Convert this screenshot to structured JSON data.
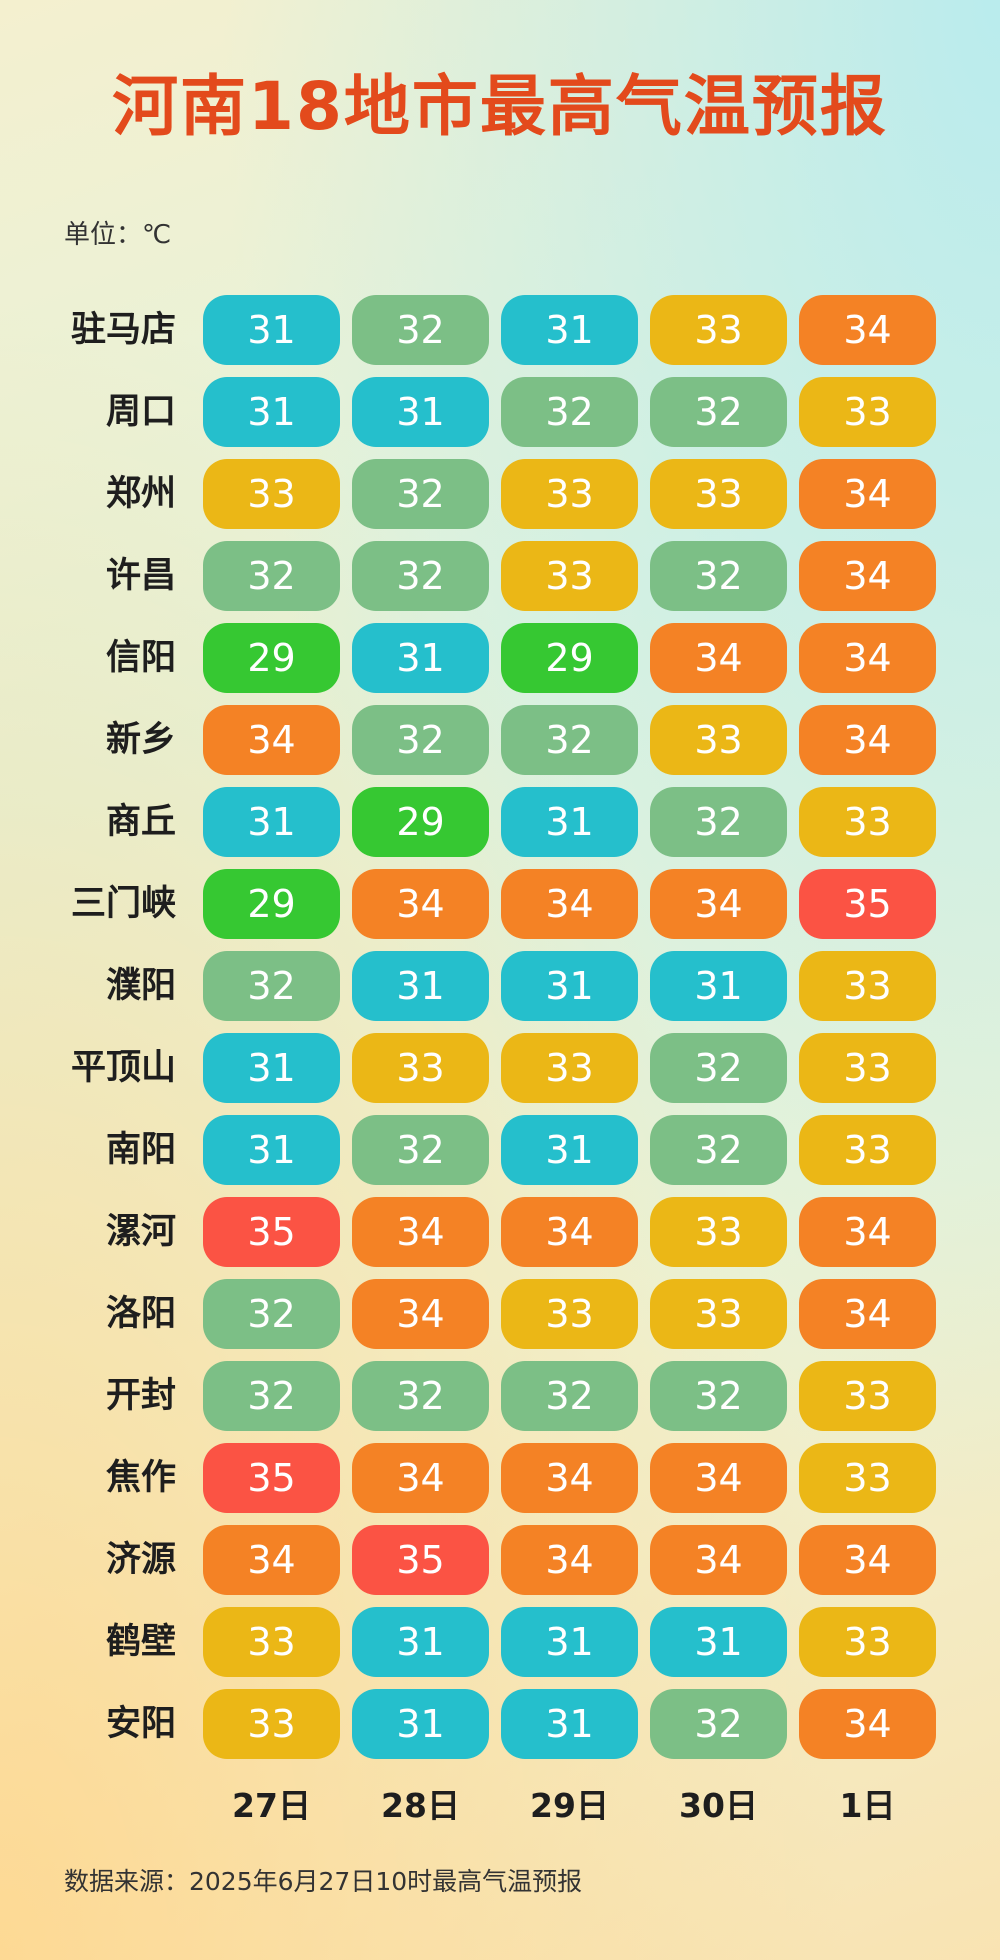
{
  "title": "河南18地市最高气温预报",
  "unit": "单位：℃",
  "source": "数据来源：2025年6月27日10时最高气温预报",
  "colors": {
    "29": "#36c832",
    "31": "#25bfcc",
    "32": "#7cbf86",
    "33": "#ebb716",
    "34": "#f48225",
    "35": "#fb5344"
  },
  "chart_data": {
    "type": "heatmap",
    "title": "河南18地市最高气温预报",
    "unit": "℃",
    "x": [
      "27日",
      "28日",
      "29日",
      "30日",
      "1日"
    ],
    "y": [
      "驻马店",
      "周口",
      "郑州",
      "许昌",
      "信阳",
      "新乡",
      "商丘",
      "三门峡",
      "濮阳",
      "平顶山",
      "南阳",
      "漯河",
      "洛阳",
      "开封",
      "焦作",
      "济源",
      "鹤壁",
      "安阳"
    ],
    "values": [
      [
        31,
        32,
        31,
        33,
        34
      ],
      [
        31,
        31,
        32,
        32,
        33
      ],
      [
        33,
        32,
        33,
        33,
        34
      ],
      [
        32,
        32,
        33,
        32,
        34
      ],
      [
        29,
        31,
        29,
        34,
        34
      ],
      [
        34,
        32,
        32,
        33,
        34
      ],
      [
        31,
        29,
        31,
        32,
        33
      ],
      [
        29,
        34,
        34,
        34,
        35
      ],
      [
        32,
        31,
        31,
        31,
        33
      ],
      [
        31,
        33,
        33,
        32,
        33
      ],
      [
        31,
        32,
        31,
        32,
        33
      ],
      [
        35,
        34,
        34,
        33,
        34
      ],
      [
        32,
        34,
        33,
        33,
        34
      ],
      [
        32,
        32,
        32,
        32,
        33
      ],
      [
        35,
        34,
        34,
        34,
        33
      ],
      [
        34,
        35,
        34,
        34,
        34
      ],
      [
        33,
        31,
        31,
        31,
        33
      ],
      [
        33,
        31,
        31,
        32,
        34
      ]
    ]
  }
}
